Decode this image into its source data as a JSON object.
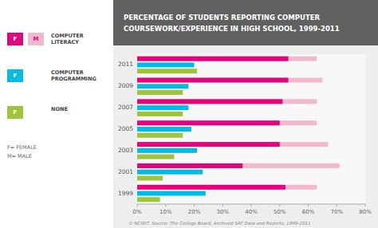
{
  "chart_data": {
    "type": "bar",
    "orientation": "horizontal",
    "title": "PERCENTAGE OF STUDENTS REPORTING COMPUTER\nCOURSEWORK/EXPERIENCE IN HIGH SCHOOL, 1999-2011",
    "categories": [
      "2011",
      "2009",
      "2007",
      "2005",
      "2003",
      "2001",
      "1999"
    ],
    "series": [
      {
        "name": "F",
        "group": "COMPUTER\nLITERACY",
        "color": "#e5007d",
        "values": [
          53,
          53,
          51,
          50,
          50,
          37,
          52
        ]
      },
      {
        "name": "M",
        "group": "COMPUTER\nLITERACY",
        "color": "#f2b8ce",
        "values": [
          63,
          65,
          63,
          63,
          67,
          71,
          63
        ]
      },
      {
        "name": "F",
        "group": "COMPUTER\nPROGRAMMING",
        "color": "#00bce4",
        "values": [
          20,
          18,
          18,
          19,
          21,
          23,
          24
        ]
      },
      {
        "name": "F",
        "group": "NONE",
        "color": "#9dc53a",
        "values": [
          21,
          16,
          16,
          16,
          13,
          9,
          8
        ]
      }
    ],
    "xlim": [
      0,
      80
    ],
    "xticks": [
      {
        "value": 0,
        "label": "0%"
      },
      {
        "value": 10,
        "label": "10%"
      },
      {
        "value": 20,
        "label": "20%"
      },
      {
        "value": 30,
        "label": "30%"
      },
      {
        "value": 40,
        "label": "40%"
      },
      {
        "value": 50,
        "label": "50%"
      },
      {
        "value": 60,
        "label": "60%"
      },
      {
        "value": 70,
        "label": "70%"
      },
      {
        "value": 80,
        "label": "80%"
      }
    ],
    "grid": false,
    "legend_note": "F= FEMALE\nM= MALE",
    "source": "© NCWIT. Source: The College Board, Archived SAT Data and Reports, 1999-2011"
  }
}
